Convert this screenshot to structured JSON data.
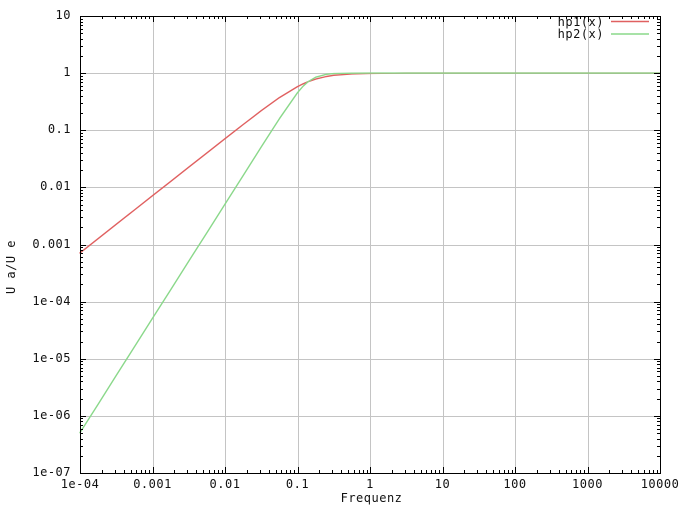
{
  "figure": {
    "background": "#ffffff"
  },
  "chart_data": {
    "type": "line",
    "title": "",
    "xlabel": "Frequenz",
    "ylabel": "U a/U e",
    "x_scale": "log",
    "y_scale": "log",
    "xlim": [
      0.0001,
      10000
    ],
    "ylim": [
      1e-07,
      10
    ],
    "grid": true,
    "legend_position": "top-right-inside",
    "colors": {
      "grid": "#c4c4c4",
      "axis": "#000000",
      "text": "#111111",
      "hp1": "#e06060",
      "hp2": "#8ad88a"
    },
    "x_ticks": [
      {
        "label": "1e-04",
        "value": 0.0001
      },
      {
        "label": "0.001",
        "value": 0.001
      },
      {
        "label": "0.01",
        "value": 0.01
      },
      {
        "label": "0.1",
        "value": 0.1
      },
      {
        "label": "1",
        "value": 1
      },
      {
        "label": "10",
        "value": 10
      },
      {
        "label": "100",
        "value": 100
      },
      {
        "label": "1000",
        "value": 1000
      },
      {
        "label": "10000",
        "value": 10000
      }
    ],
    "y_ticks": [
      {
        "label": "10",
        "value": 10
      },
      {
        "label": "1",
        "value": 1
      },
      {
        "label": "0.1",
        "value": 0.1
      },
      {
        "label": "0.01",
        "value": 0.01
      },
      {
        "label": "0.001",
        "value": 0.001
      },
      {
        "label": "1e-04",
        "value": 0.0001
      },
      {
        "label": "1e-05",
        "value": 1e-05
      },
      {
        "label": "1e-06",
        "value": 1e-06
      },
      {
        "label": "1e-07",
        "value": 1e-07
      }
    ],
    "series": [
      {
        "name": "hp1(x)",
        "color_key": "hp1",
        "description": "first-order high-pass magnitude, cutoff ~0.14",
        "points": [
          [
            0.0001,
            0.000714
          ],
          [
            0.000178,
            0.00127
          ],
          [
            0.000316,
            0.00226
          ],
          [
            0.000562,
            0.00402
          ],
          [
            0.001,
            0.00714
          ],
          [
            0.00178,
            0.0127
          ],
          [
            0.00316,
            0.02258
          ],
          [
            0.00562,
            0.04014
          ],
          [
            0.01,
            0.07125
          ],
          [
            0.0178,
            0.126
          ],
          [
            0.0316,
            0.2203
          ],
          [
            0.0562,
            0.3728
          ],
          [
            0.1,
            0.5812
          ],
          [
            0.12,
            0.6507
          ],
          [
            0.14,
            0.7071
          ],
          [
            0.178,
            0.7857
          ],
          [
            0.25,
            0.8725
          ],
          [
            0.316,
            0.9144
          ],
          [
            0.562,
            0.9704
          ],
          [
            1,
            0.9903
          ],
          [
            3.16,
            0.999
          ],
          [
            10,
            0.9999
          ],
          [
            100,
            1.0
          ],
          [
            1000,
            1.0
          ],
          [
            10000,
            1.0
          ]
        ]
      },
      {
        "name": "hp2(x)",
        "color_key": "hp2",
        "description": "second-order high-pass magnitude, cutoff ~0.14",
        "points": [
          [
            0.0001,
            5.1e-07
          ],
          [
            0.000178,
            1.61e-06
          ],
          [
            0.000316,
            5.1e-06
          ],
          [
            0.000562,
            1.61e-05
          ],
          [
            0.001,
            5.1e-05
          ],
          [
            0.00178,
            0.000161
          ],
          [
            0.00316,
            0.00051
          ],
          [
            0.00562,
            0.00161
          ],
          [
            0.01,
            0.0051
          ],
          [
            0.0178,
            0.01613
          ],
          [
            0.0316,
            0.05095
          ],
          [
            0.0562,
            0.1593
          ],
          [
            0.1,
            0.4545
          ],
          [
            0.12,
            0.5921
          ],
          [
            0.14,
            0.7071
          ],
          [
            0.178,
            0.85
          ],
          [
            0.25,
            0.9542
          ],
          [
            0.316,
            0.9813
          ],
          [
            0.562,
            0.9981
          ],
          [
            1,
            0.9998
          ],
          [
            3.16,
            1.0
          ],
          [
            10,
            1.0
          ],
          [
            100,
            1.0
          ],
          [
            1000,
            1.0
          ],
          [
            10000,
            1.0
          ]
        ]
      }
    ]
  }
}
